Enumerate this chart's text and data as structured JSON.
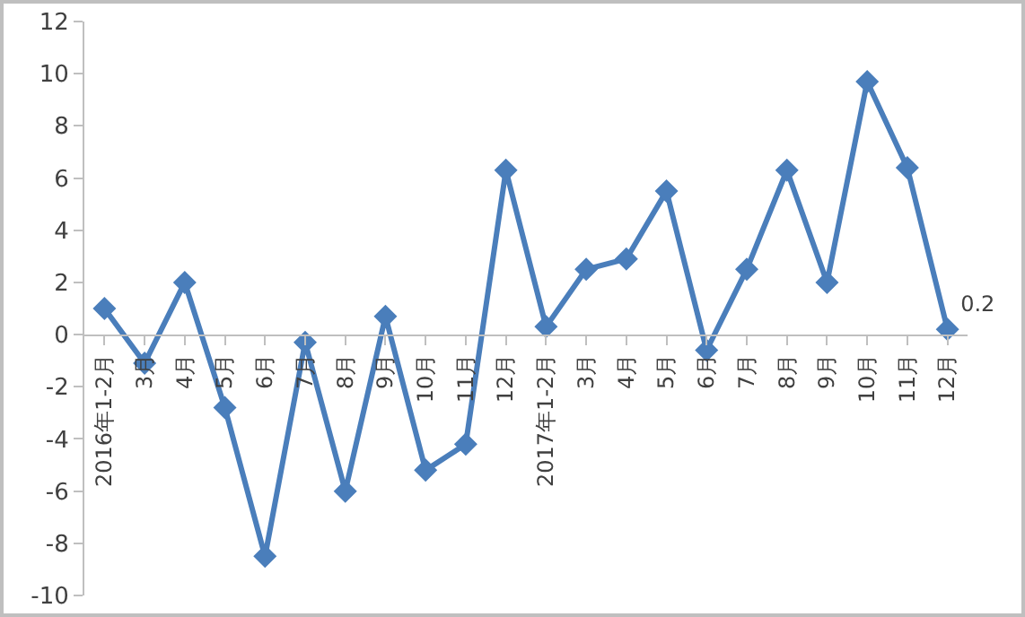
{
  "chart_data": {
    "type": "line",
    "categories": [
      "2016年1-2月",
      "3月",
      "4月",
      "5月",
      "6月",
      "7月",
      "8月",
      "9月",
      "10月",
      "11月",
      "12月",
      "2017年1-2月",
      "3月",
      "4月",
      "5月",
      "6月",
      "7月",
      "8月",
      "9月",
      "10月",
      "11月",
      "12月"
    ],
    "series": [
      {
        "color": "#4a7ebb",
        "values": [
          1.0,
          -1.1,
          2.0,
          -2.8,
          -8.5,
          -0.3,
          -6.0,
          0.7,
          -5.2,
          -4.2,
          6.3,
          0.3,
          2.5,
          2.9,
          5.5,
          -0.6,
          2.5,
          6.3,
          2.0,
          9.7,
          6.4,
          0.2
        ],
        "value_labels": [
          null,
          null,
          null,
          null,
          null,
          null,
          null,
          null,
          null,
          null,
          null,
          null,
          null,
          null,
          null,
          null,
          null,
          null,
          null,
          null,
          null,
          "0.2"
        ]
      }
    ],
    "ylim": [
      -10,
      12
    ],
    "yticks": [
      -10,
      -8,
      -6,
      -4,
      -2,
      0,
      2,
      4,
      6,
      8,
      10,
      12
    ],
    "marker": "diamond",
    "line_style": "solid"
  }
}
